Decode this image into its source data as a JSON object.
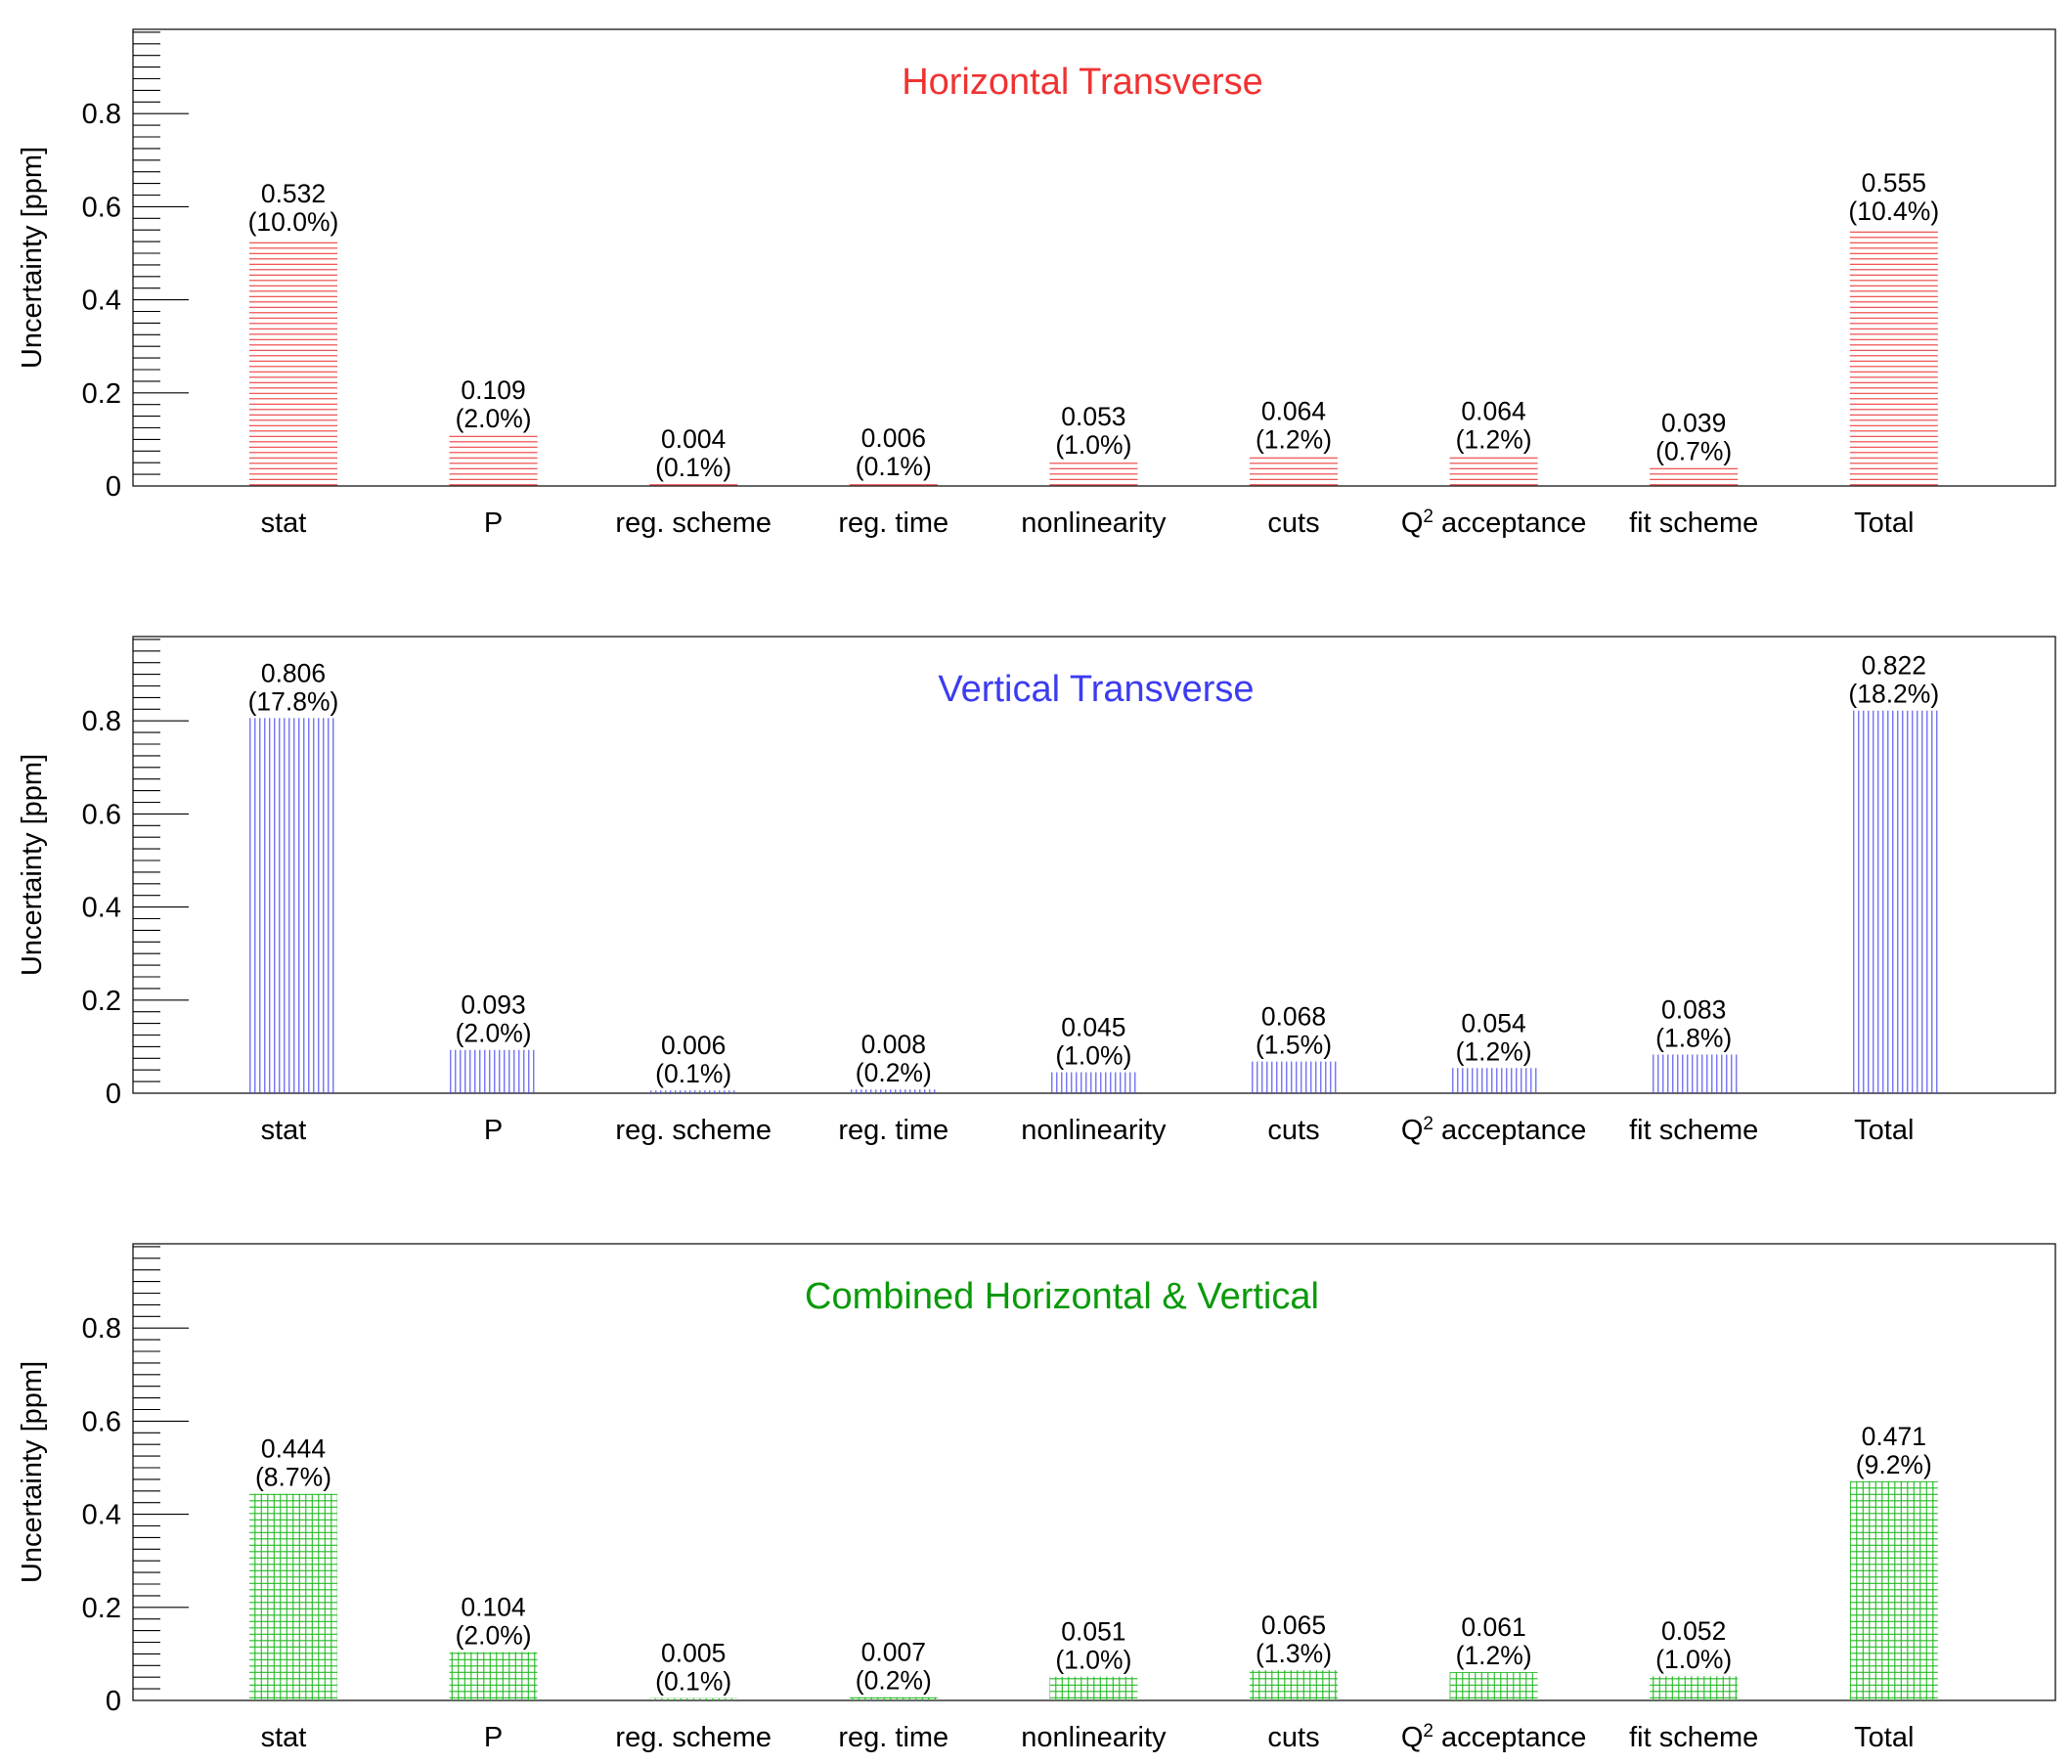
{
  "chart_data": [
    {
      "type": "bar",
      "title": "Horizontal Transverse",
      "title_color": "#f03232",
      "bar_color": "#ee3a3a",
      "hatch": "horizontal-lines",
      "ylabel": "Uncertainty [ppm]",
      "ylim": [
        0,
        0.98
      ],
      "yticks": [
        "0",
        "0.2",
        "0.4",
        "0.6",
        "0.8"
      ],
      "categories": [
        "stat",
        "P",
        "reg. scheme",
        "reg. time",
        "nonlinearity",
        "cuts",
        "Q",
        "fit scheme",
        "Total"
      ],
      "values": [
        0.532,
        0.109,
        0.004,
        0.006,
        0.053,
        0.064,
        0.064,
        0.039,
        0.555
      ],
      "value_labels": [
        "0.532",
        "0.109",
        "0.004",
        "0.006",
        "0.053",
        "0.064",
        "0.064",
        "0.039",
        "0.555"
      ],
      "percent_labels": [
        "(10.0%)",
        "(2.0%)",
        "(0.1%)",
        "(0.1%)",
        "(1.0%)",
        "(1.2%)",
        "(1.2%)",
        "(0.7%)",
        "(10.4%)"
      ]
    },
    {
      "type": "bar",
      "title": "Vertical Transverse",
      "title_color": "#3c3cf0",
      "bar_color": "#4a4af0",
      "hatch": "vertical-lines",
      "ylabel": "Uncertainty [ppm]",
      "ylim": [
        0,
        0.98
      ],
      "yticks": [
        "0",
        "0.2",
        "0.4",
        "0.6",
        "0.8"
      ],
      "categories": [
        "stat",
        "P",
        "reg. scheme",
        "reg. time",
        "nonlinearity",
        "cuts",
        "Q",
        "fit scheme",
        "Total"
      ],
      "values": [
        0.806,
        0.093,
        0.006,
        0.008,
        0.045,
        0.068,
        0.054,
        0.083,
        0.822
      ],
      "value_labels": [
        "0.806",
        "0.093",
        "0.006",
        "0.008",
        "0.045",
        "0.068",
        "0.054",
        "0.083",
        "0.822"
      ],
      "percent_labels": [
        "(17.8%)",
        "(2.0%)",
        "(0.1%)",
        "(0.2%)",
        "(1.0%)",
        "(1.5%)",
        "(1.2%)",
        "(1.8%)",
        "(18.2%)"
      ]
    },
    {
      "type": "bar",
      "title": "Combined Horizontal & Vertical",
      "title_color": "#0a9a0a",
      "bar_color": "#1fb81f",
      "hatch": "grid",
      "ylabel": "Uncertainty [ppm]",
      "ylim": [
        0,
        0.98
      ],
      "yticks": [
        "0",
        "0.2",
        "0.4",
        "0.6",
        "0.8"
      ],
      "categories": [
        "stat",
        "P",
        "reg. scheme",
        "reg. time",
        "nonlinearity",
        "cuts",
        "Q",
        "fit scheme",
        "Total"
      ],
      "values": [
        0.444,
        0.104,
        0.005,
        0.007,
        0.051,
        0.065,
        0.061,
        0.052,
        0.471
      ],
      "value_labels": [
        "0.444",
        "0.104",
        "0.005",
        "0.007",
        "0.051",
        "0.065",
        "0.061",
        "0.052",
        "0.471"
      ],
      "percent_labels": [
        "(8.7%)",
        "(2.0%)",
        "(0.1%)",
        "(0.2%)",
        "(1.0%)",
        "(1.3%)",
        "(1.2%)",
        "(1.0%)",
        "(9.2%)"
      ]
    }
  ],
  "q2_label": {
    "superscript": "2",
    "suffix": " acceptance"
  }
}
